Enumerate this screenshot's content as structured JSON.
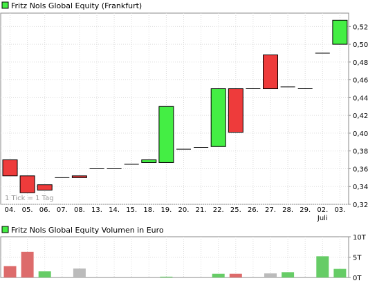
{
  "chart_data": [
    {
      "type": "candlestick",
      "title": "Fritz Nols Global Equity (Frankfurt)",
      "watermark": "1 Tick = 1 Tag",
      "categories": [
        "04.",
        "05.",
        "06.",
        "07.",
        "08.",
        "13.",
        "14.",
        "15.",
        "18.",
        "19.",
        "20.",
        "21.",
        "22.",
        "25.",
        "26.",
        "27.",
        "28.",
        "29.",
        "02.",
        "03."
      ],
      "month_label": {
        "index": 18,
        "text": "Juli"
      },
      "open": [
        0.37,
        0.352,
        0.342,
        0.35,
        0.352,
        0.36,
        0.36,
        0.365,
        0.367,
        0.367,
        0.382,
        0.384,
        0.385,
        0.45,
        0.45,
        0.488,
        0.452,
        0.45,
        0.49,
        0.5
      ],
      "close": [
        0.352,
        0.333,
        0.336,
        0.35,
        0.35,
        0.36,
        0.36,
        0.365,
        0.37,
        0.43,
        0.382,
        0.384,
        0.45,
        0.401,
        0.45,
        0.45,
        0.452,
        0.45,
        0.49,
        0.527
      ],
      "yticks": [
        "0,32",
        "0,34",
        "0,36",
        "0,38",
        "0,40",
        "0,42",
        "0,44",
        "0,46",
        "0,48",
        "0,50",
        "0,52"
      ],
      "ylim": [
        0.32,
        0.535
      ],
      "up_color": "#44ee44",
      "down_color": "#ee3b3b",
      "grid": true
    },
    {
      "type": "bar",
      "title": "Fritz Nols Global Equity Volumen in Euro",
      "categories": [
        "04.",
        "05.",
        "06.",
        "07.",
        "08.",
        "13.",
        "14.",
        "15.",
        "18.",
        "19.",
        "20.",
        "21.",
        "22.",
        "25.",
        "26.",
        "27.",
        "28.",
        "29.",
        "02.",
        "03."
      ],
      "values": [
        2.8,
        6.3,
        1.5,
        0,
        2.2,
        0,
        0,
        0,
        0,
        0.2,
        0,
        0,
        0.9,
        0.9,
        0,
        1.0,
        1.3,
        0,
        5.2,
        2.1
      ],
      "bar_colors": [
        "#dd6b6b",
        "#dd6b6b",
        "#66cc66",
        "#bbbbbb",
        "#bbbbbb",
        "#bbbbbb",
        "#bbbbbb",
        "#bbbbbb",
        "#bbbbbb",
        "#66cc66",
        "#bbbbbb",
        "#bbbbbb",
        "#66cc66",
        "#dd6b6b",
        "#bbbbbb",
        "#bbbbbb",
        "#66cc66",
        "#bbbbbb",
        "#66cc66",
        "#66cc66"
      ],
      "yticks": [
        "0T",
        "5T",
        "10T"
      ],
      "ylim": [
        0,
        10
      ]
    }
  ]
}
